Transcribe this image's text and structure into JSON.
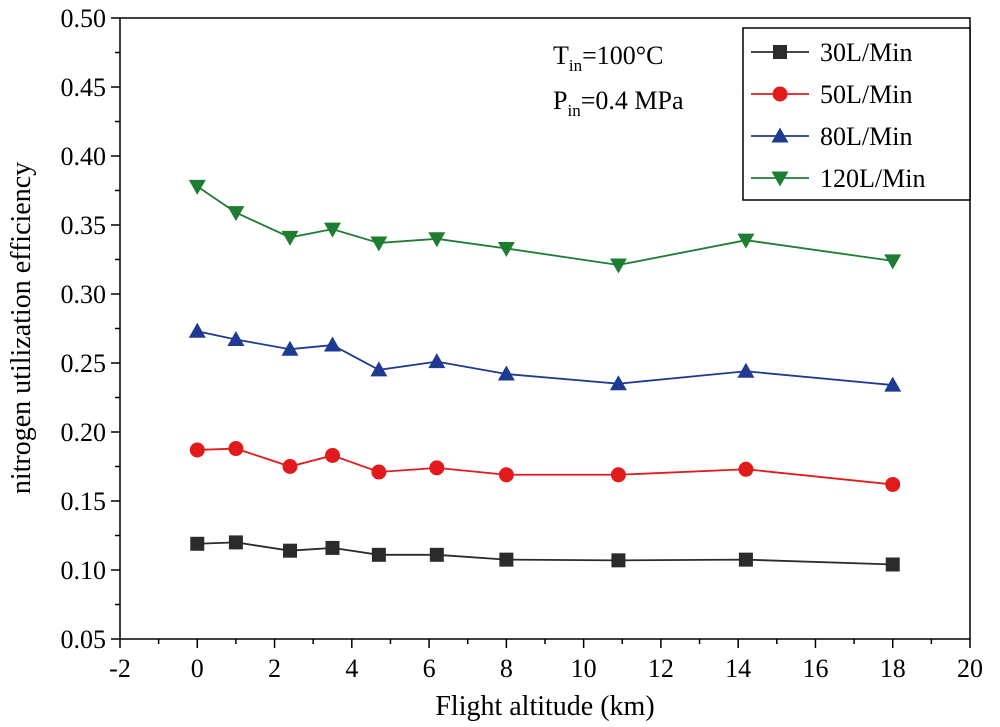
{
  "chart_data": {
    "type": "line",
    "title": "",
    "xlabel": "Flight altitude (km)",
    "ylabel": "nitrogen utilization efficiency",
    "xlim": [
      -2,
      20
    ],
    "ylim": [
      0.05,
      0.5
    ],
    "grid": false,
    "xticks": [
      -2,
      0,
      2,
      4,
      6,
      8,
      10,
      12,
      14,
      16,
      18,
      20
    ],
    "xtick_labels": [
      "-2",
      "0",
      "2",
      "4",
      "6",
      "8",
      "10",
      "12",
      "14",
      "16",
      "18",
      "20"
    ],
    "yticks": [
      0.05,
      0.1,
      0.15,
      0.2,
      0.25,
      0.3,
      0.35,
      0.4,
      0.45,
      0.5
    ],
    "ytick_labels": [
      "0.05",
      "0.10",
      "0.15",
      "0.20",
      "0.25",
      "0.30",
      "0.35",
      "0.40",
      "0.45",
      "0.50"
    ],
    "x": [
      0,
      1,
      2.4,
      3.5,
      4.7,
      6.2,
      8,
      10.9,
      14.2,
      18
    ],
    "series": [
      {
        "name": "30L/Min",
        "color": "#2b2b2b",
        "marker": "square",
        "values": [
          0.119,
          0.12,
          0.114,
          0.116,
          0.111,
          0.111,
          0.1075,
          0.107,
          0.1075,
          0.104
        ]
      },
      {
        "name": "50L/Min",
        "color": "#e31a1c",
        "marker": "circle",
        "values": [
          0.187,
          0.188,
          0.175,
          0.183,
          0.171,
          0.174,
          0.169,
          0.169,
          0.173,
          0.162
        ]
      },
      {
        "name": "80L/Min",
        "color": "#1f3a93",
        "marker": "triangle-up",
        "values": [
          0.273,
          0.267,
          0.26,
          0.263,
          0.245,
          0.251,
          0.242,
          0.235,
          0.244,
          0.234
        ]
      },
      {
        "name": "120L/Min",
        "color": "#1e7d32",
        "marker": "triangle-down",
        "values": [
          0.378,
          0.359,
          0.341,
          0.347,
          0.337,
          0.34,
          0.333,
          0.321,
          0.339,
          0.324
        ]
      }
    ],
    "legend_position": "top-right",
    "annotations": {
      "t_base": "T",
      "t_sub": "in",
      "t_rest": "=100°C",
      "p_base": "P",
      "p_sub": "in",
      "p_rest": "=0.4 MPa"
    }
  }
}
